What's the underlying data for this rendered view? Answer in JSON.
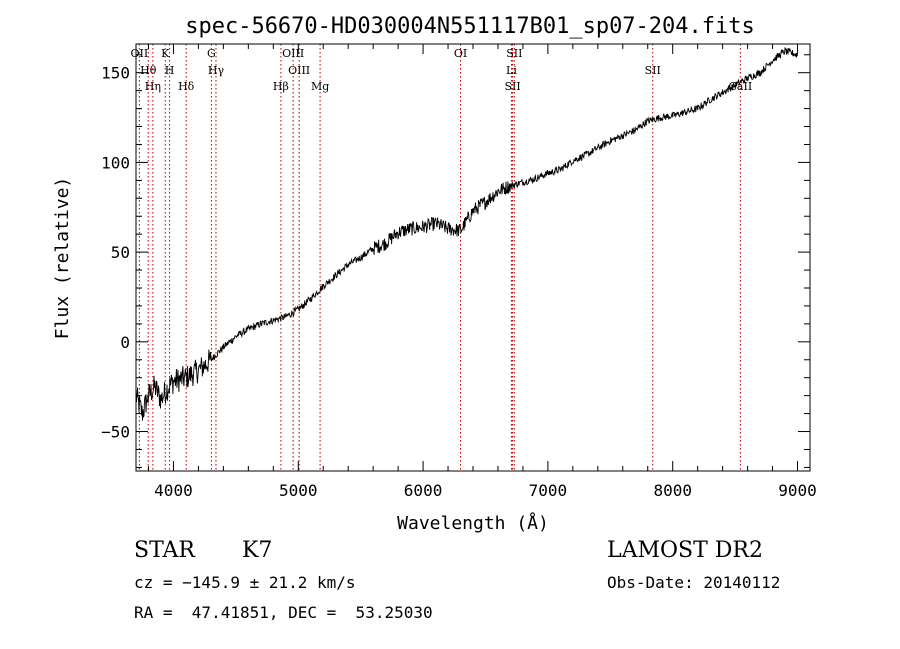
{
  "chart_data": {
    "type": "line",
    "title": "spec-56670-HD030004N551117B01_sp07-204.fits",
    "xlabel": "Wavelength (Å)",
    "ylabel": "Flux (relative)",
    "xlim": [
      3700,
      9100
    ],
    "ylim": [
      -72,
      166
    ],
    "x_ticks": [
      4000,
      5000,
      6000,
      7000,
      8000,
      9000
    ],
    "y_ticks": [
      -50,
      0,
      50,
      100,
      150
    ],
    "grid": false,
    "line_color": "#000000",
    "marker_color": "#b00000",
    "series": [
      {
        "x": [
          3700,
          3750,
          3800,
          3850,
          3900,
          3950,
          4000,
          4100,
          4200,
          4300,
          4400,
          4500,
          4600,
          4700,
          4800,
          4900,
          5000,
          5100,
          5200,
          5300,
          5400,
          5500,
          5600,
          5700,
          5800,
          5900,
          6000,
          6100,
          6200,
          6300,
          6400,
          6500,
          6600,
          6700,
          6800,
          6900,
          7000,
          7100,
          7200,
          7300,
          7400,
          7500,
          7600,
          7700,
          7800,
          7900,
          8000,
          8100,
          8200,
          8300,
          8400,
          8500,
          8600,
          8700,
          8800,
          8900,
          9000
        ],
        "y": [
          -30,
          -40,
          -30,
          -25,
          -32,
          -26,
          -22,
          -20,
          -16,
          -10,
          -3,
          3,
          7,
          10,
          12,
          14,
          18,
          24,
          31,
          37,
          43,
          47,
          52,
          55,
          61,
          63,
          64,
          66,
          63,
          62,
          73,
          78,
          84,
          87,
          89,
          91,
          94,
          96,
          101,
          104,
          108,
          112,
          115,
          118,
          123,
          125,
          126,
          128,
          130,
          135,
          139,
          143,
          147,
          150,
          157,
          162,
          160
        ]
      }
    ],
    "lines": [
      {
        "label": "OII",
        "x": 3727
      },
      {
        "label": "Hθ",
        "x": 3798
      },
      {
        "label": "Hη",
        "x": 3835
      },
      {
        "label": "K",
        "x": 3934
      },
      {
        "label": "H",
        "x": 3969
      },
      {
        "label": "Hδ",
        "x": 4102
      },
      {
        "label": "G",
        "x": 4304
      },
      {
        "label": "Hγ",
        "x": 4341
      },
      {
        "label": "Hβ",
        "x": 4861
      },
      {
        "label": "OIII",
        "x": 4959
      },
      {
        "label": "OIII",
        "x": 5007
      },
      {
        "label": "Mg",
        "x": 5175
      },
      {
        "label": "OI",
        "x": 6300
      },
      {
        "label": "Li",
        "x": 6708
      },
      {
        "label": "SII",
        "x": 6717
      },
      {
        "label": "SII",
        "x": 6731
      },
      {
        "label": "SII",
        "x": 7840
      },
      {
        "label": "CaII",
        "x": 8542
      }
    ]
  },
  "info": {
    "object_class": "STAR",
    "subclass": "K7",
    "survey": "LAMOST DR2",
    "cz": "cz = −145.9 ± 21.2 km/s",
    "obs_date": "Obs-Date: 20140112",
    "coords": "RA =  47.41851, DEC =  53.25030"
  }
}
